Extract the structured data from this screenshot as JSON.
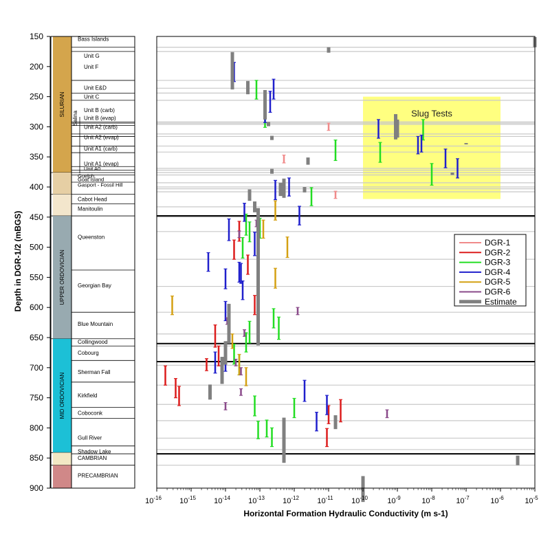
{
  "chart_data": {
    "type": "scatter",
    "title": "",
    "xlabel": "Horizontal Formation Hydraulic Conductivity (m s-1)",
    "ylabel": "Depth in DGR-1/2 (mBGS)",
    "xscale": "log",
    "xlim_exponents": [
      -16,
      -5
    ],
    "x_tick_exponents": [
      -16,
      -15,
      -14,
      -13,
      -12,
      -11,
      -10,
      -9,
      -8,
      -7,
      -6,
      -5
    ],
    "ylim": [
      900,
      150
    ],
    "y_ticks": [
      150,
      200,
      250,
      300,
      350,
      400,
      450,
      500,
      550,
      600,
      650,
      700,
      750,
      800,
      850,
      900
    ],
    "legend": {
      "placement": "right"
    },
    "annotation_box": {
      "label": "Slug Tests",
      "x_range_exponents": [
        -10,
        -6
      ],
      "depth_range": [
        250,
        420
      ],
      "color": "#ffff80"
    },
    "boundary_lines": [
      448,
      660,
      690,
      843
    ],
    "unit_lines": [
      168,
      175,
      223,
      236,
      244,
      256,
      292,
      294,
      296,
      312,
      316,
      332,
      342,
      369,
      372,
      376,
      380,
      393,
      400,
      403,
      408,
      433,
      450,
      474,
      520,
      565,
      608,
      644,
      664,
      696,
      729,
      761,
      788,
      817,
      836,
      862
    ],
    "series": [
      {
        "name": "DGR-1",
        "color": "#f08a8a",
        "exps": [
          -11.0,
          -12.3,
          -10.8
        ],
        "depths": [
          [
            294,
            306
          ],
          [
            347,
            360
          ],
          [
            407,
            419
          ]
        ]
      },
      {
        "name": "DGR-2",
        "color": "#dc1c1c",
        "exps": [
          -13.6,
          -13.75,
          -13.35,
          -13.15,
          -14.3,
          -14.2,
          -14.55,
          -15.75,
          -15.45,
          -15.35,
          -11.0,
          -10.65,
          -11.05
        ],
        "depths": [
          [
            457,
            490
          ],
          [
            488,
            520
          ],
          [
            513,
            545
          ],
          [
            580,
            612
          ],
          [
            629,
            666
          ],
          [
            664,
            697
          ],
          [
            685,
            705
          ],
          [
            697,
            729
          ],
          [
            718,
            750
          ],
          [
            731,
            763
          ],
          [
            763,
            793
          ],
          [
            753,
            790
          ],
          [
            801,
            831
          ]
        ]
      },
      {
        "name": "DGR-3",
        "color": "#22dd22",
        "exps": [
          -13.8,
          -13.1,
          -12.85,
          -13.4,
          -13.0,
          -13.3,
          -13.5,
          -13.05,
          -12.6,
          -12.45,
          -11.5,
          -10.8,
          -9.5,
          -8.25,
          -8.0,
          -13.3,
          -13.4,
          -13.75,
          -13.6,
          -13.15,
          -12.8,
          -12.0,
          -13.05,
          -12.65
        ],
        "depths": [
          [
            191,
            227
          ],
          [
            223,
            254
          ],
          [
            269,
            301
          ],
          [
            445,
            480
          ],
          [
            452,
            485
          ],
          [
            458,
            491
          ],
          [
            484,
            518
          ],
          [
            558,
            592
          ],
          [
            602,
            634
          ],
          [
            616,
            653
          ],
          [
            401,
            431
          ],
          [
            322,
            356
          ],
          [
            326,
            359
          ],
          [
            288,
            322
          ],
          [
            361,
            397
          ],
          [
            623,
            659
          ],
          [
            642,
            674
          ],
          [
            661,
            694
          ],
          [
            678,
            712
          ],
          [
            747,
            780
          ],
          [
            787,
            815
          ],
          [
            751,
            783
          ],
          [
            789,
            818
          ],
          [
            800,
            831
          ]
        ]
      },
      {
        "name": "DGR-4",
        "color": "#1f1fcc",
        "exps": [
          -13.75,
          -12.6,
          -12.85,
          -13.45,
          -12.7,
          -12.15,
          -12.55,
          -11.85,
          -13.9,
          -13.15,
          -13.6,
          -13.55,
          -14.0,
          -14.5,
          -14.0,
          -13.5,
          -14.0,
          -14.3,
          -11.7,
          -11.05,
          -11.35,
          -9.55,
          -8.4,
          -7.6,
          -8.3,
          -7.25
        ],
        "depths": [
          [
            193,
            225
          ],
          [
            221,
            254
          ],
          [
            260,
            293
          ],
          [
            427,
            457
          ],
          [
            241,
            276
          ],
          [
            385,
            415
          ],
          [
            389,
            421
          ],
          [
            432,
            463
          ],
          [
            453,
            489
          ],
          [
            475,
            514
          ],
          [
            525,
            558
          ],
          [
            527,
            560
          ],
          [
            536,
            569
          ],
          [
            509,
            540
          ],
          [
            590,
            622
          ],
          [
            556,
            587
          ],
          [
            667,
            706
          ],
          [
            674,
            709
          ],
          [
            721,
            756
          ],
          [
            746,
            778
          ],
          [
            774,
            805
          ],
          [
            288,
            319
          ],
          [
            316,
            345
          ],
          [
            337,
            368
          ],
          [
            314,
            342
          ],
          [
            353,
            385
          ]
        ]
      },
      {
        "name": "DGR-5",
        "color": "#d4a012",
        "exps": [
          -12.55,
          -12.9,
          -12.2,
          -12.55,
          -15.55,
          -13.8,
          -13.6,
          -13.4
        ],
        "depths": [
          [
            423,
            455
          ],
          [
            455,
            485
          ],
          [
            483,
            517
          ],
          [
            535,
            568
          ],
          [
            581,
            612
          ],
          [
            644,
            668
          ],
          [
            678,
            712
          ],
          [
            700,
            730
          ]
        ]
      },
      {
        "name": "DGR-6",
        "color": "#8a4a8a",
        "exps": [
          -13.1,
          -13.6,
          -13.95,
          -13.45,
          -13.7,
          -13.55,
          -13.55,
          -14.0,
          -11.9,
          -9.3
        ],
        "depths": [
          [
            455,
            466
          ],
          [
            473,
            484
          ],
          [
            617,
            628
          ],
          [
            637,
            648
          ],
          [
            686,
            697
          ],
          [
            700,
            712
          ],
          [
            735,
            746
          ],
          [
            758,
            770
          ],
          [
            600,
            612
          ],
          [
            770,
            783
          ]
        ]
      },
      {
        "name": "Estimate",
        "color": "#808080",
        "exps": [
          -5.0,
          -11.0,
          -13.8,
          -13.35,
          -12.85,
          -12.75,
          -12.65,
          -12.65,
          -13.3,
          -12.4,
          -11.7,
          -11.6,
          -12.3,
          -13.15,
          -13.05,
          -13.9,
          -14.0,
          -14.1,
          -14.45,
          -10.8,
          -12.3,
          -10.0,
          -5.5
        ],
        "depths": [
          [
            151,
            168
          ],
          [
            168,
            177
          ],
          [
            176,
            238
          ],
          [
            224,
            246
          ],
          [
            239,
            288
          ],
          [
            292,
            299
          ],
          [
            315,
            322
          ],
          [
            370,
            378
          ],
          [
            404,
            423
          ],
          [
            393,
            415
          ],
          [
            400,
            409
          ],
          [
            351,
            363
          ],
          [
            386,
            418
          ],
          [
            424,
            442
          ],
          [
            435,
            663
          ],
          [
            594,
            660
          ],
          [
            656,
            695
          ],
          [
            682,
            727
          ],
          [
            728,
            753
          ],
          [
            779,
            802
          ],
          [
            783,
            858
          ],
          [
            880,
            923
          ],
          [
            846,
            862
          ]
        ]
      },
      {
        "name": "Estimate",
        "color": "#808080",
        "exps": [
          -9.05,
          -9.0,
          -7.4,
          -7.0
        ],
        "depths": [
          [
            279,
            321
          ],
          [
            288,
            318
          ],
          [
            376,
            380
          ],
          [
            327,
            329
          ]
        ]
      }
    ],
    "stratigraphy": {
      "systems": [
        {
          "label": "SILURIAN",
          "top": 150,
          "bottom": 376,
          "color": "#d4a54c"
        },
        {
          "label": "",
          "top": 376,
          "bottom": 412,
          "color": "#e6cfa4"
        },
        {
          "label": "",
          "top": 412,
          "bottom": 448,
          "color": "#f3e6cc"
        },
        {
          "label": "UPPER ORDOVICIAN",
          "top": 448,
          "bottom": 652,
          "color": "#98aab0"
        },
        {
          "label": "MID ORDOVICIAN",
          "top": 652,
          "bottom": 841,
          "color": "#1cc0d6"
        },
        {
          "label": "",
          "top": 841,
          "bottom": 862,
          "color": "#f2e8c4"
        },
        {
          "label": "",
          "top": 862,
          "bottom": 900,
          "color": "#d08888"
        }
      ],
      "salina_label": "Salina",
      "units": [
        {
          "label": "Bass Islands",
          "depth": 154
        },
        {
          "label": "Unit G",
          "depth": 182
        },
        {
          "label": "Unit F",
          "depth": 200
        },
        {
          "label": "Unit E&D",
          "depth": 235
        },
        {
          "label": "Unit C",
          "depth": 250
        },
        {
          "label": "Unit B (carb)",
          "depth": 272
        },
        {
          "label": "Unit B (evap)",
          "depth": 285
        },
        {
          "label": "Unit A2 (carb)",
          "depth": 300
        },
        {
          "label": "Unit A2 (evap)",
          "depth": 317
        },
        {
          "label": "Unit A1 (carb)",
          "depth": 336
        },
        {
          "label": "Unit A1 (evap)",
          "depth": 361
        },
        {
          "label": "Unit A0",
          "depth": 369
        },
        {
          "label": "Guelph",
          "depth": 381
        },
        {
          "label": "Goat Island",
          "depth": 387
        },
        {
          "label": "Gasport - Fossil Hill",
          "depth": 396
        },
        {
          "label": "Cabot Head",
          "depth": 420
        },
        {
          "label": "Manitoulin",
          "depth": 436
        },
        {
          "label": "Queenston",
          "depth": 483
        },
        {
          "label": "Georgian Bay",
          "depth": 563
        },
        {
          "label": "Blue Mountain",
          "depth": 627
        },
        {
          "label": "Collingwood",
          "depth": 657
        },
        {
          "label": "Cobourg",
          "depth": 675
        },
        {
          "label": "Sherman Fall",
          "depth": 707
        },
        {
          "label": "Kirkfield",
          "depth": 746
        },
        {
          "label": "Coboconk",
          "depth": 775
        },
        {
          "label": "Gull River",
          "depth": 816
        },
        {
          "label": "Shadow Lake",
          "depth": 839
        },
        {
          "label": "CAMBRIAN",
          "depth": 850
        },
        {
          "label": "PRECAMBRIAN",
          "depth": 879
        }
      ],
      "unit_boundaries": [
        168,
        175,
        223,
        244,
        256,
        292,
        294,
        298,
        312,
        316,
        332,
        343,
        366,
        372,
        376,
        380,
        392,
        412,
        428,
        448,
        538,
        608,
        652,
        664,
        688,
        724,
        766,
        784,
        830,
        843,
        862
      ]
    }
  }
}
